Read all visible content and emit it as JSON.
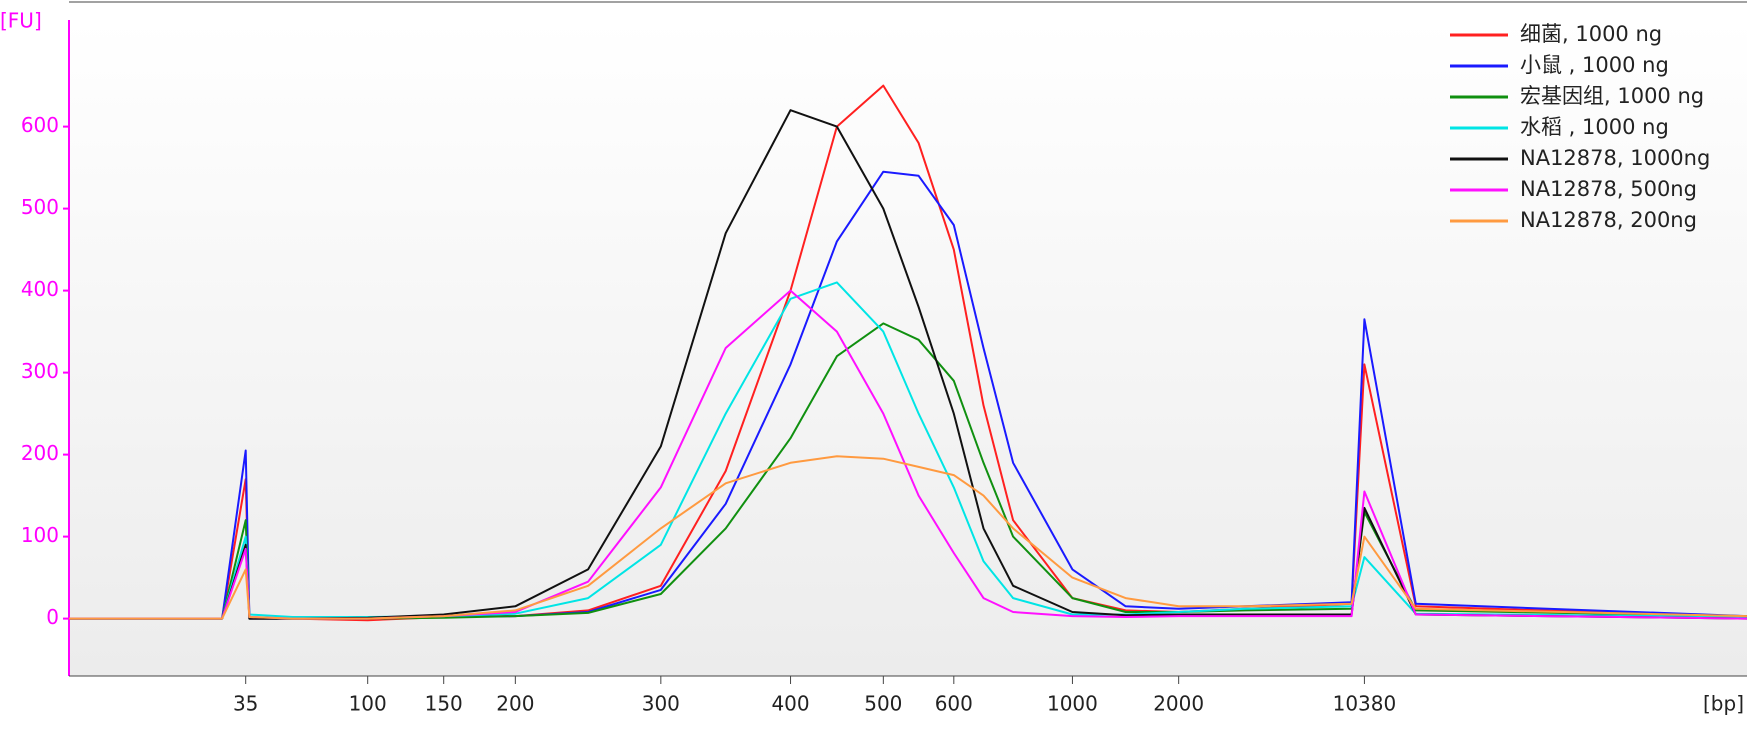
{
  "chart_data": {
    "type": "line",
    "y_label": "[FU]",
    "x_label": "[bp]",
    "x": [
      20,
      33,
      35,
      37,
      60,
      100,
      150,
      200,
      250,
      300,
      350,
      400,
      450,
      500,
      550,
      600,
      700,
      800,
      1000,
      1500,
      2000,
      5000,
      9800,
      10380,
      11000,
      15000
    ],
    "xlim": [
      20,
      15000
    ],
    "xticks": [
      35,
      100,
      150,
      200,
      300,
      400,
      500,
      600,
      1000,
      2000,
      10380
    ],
    "ylim": [
      -70,
      730
    ],
    "yticks": [
      0,
      100,
      200,
      300,
      400,
      500,
      600
    ],
    "legend": "top-right",
    "series": [
      {
        "name": "细菌, 1000 ng",
        "color": "#ff2020",
        "values": [
          0,
          0,
          170,
          0,
          0,
          -2,
          2,
          3,
          10,
          40,
          180,
          400,
          600,
          650,
          580,
          450,
          260,
          120,
          25,
          10,
          8,
          12,
          18,
          310,
          15,
          2
        ]
      },
      {
        "name": "小鼠 , 1000 ng",
        "color": "#1a1aff",
        "values": [
          0,
          0,
          205,
          0,
          0,
          0,
          2,
          3,
          8,
          35,
          140,
          310,
          460,
          545,
          540,
          480,
          330,
          190,
          60,
          15,
          12,
          15,
          20,
          365,
          18,
          3
        ]
      },
      {
        "name": "宏基因组, 1000 ng",
        "color": "#109010",
        "values": [
          0,
          0,
          120,
          0,
          0,
          0,
          1,
          3,
          7,
          30,
          110,
          220,
          320,
          360,
          340,
          290,
          190,
          100,
          25,
          8,
          8,
          10,
          12,
          130,
          10,
          3
        ]
      },
      {
        "name": "水稻 , 1000 ng",
        "color": "#00e5e5",
        "values": [
          0,
          0,
          100,
          5,
          2,
          2,
          3,
          6,
          25,
          90,
          250,
          390,
          410,
          350,
          250,
          160,
          70,
          25,
          5,
          5,
          8,
          12,
          15,
          75,
          6,
          2
        ]
      },
      {
        "name": "NA12878, 1000ng",
        "color": "#111111",
        "values": [
          0,
          0,
          90,
          0,
          0,
          1,
          5,
          15,
          60,
          210,
          470,
          620,
          600,
          500,
          380,
          250,
          110,
          40,
          8,
          4,
          5,
          5,
          5,
          135,
          5,
          0
        ]
      },
      {
        "name": "NA12878, 500ng",
        "color": "#ff10ff",
        "values": [
          0,
          0,
          85,
          2,
          0,
          0,
          3,
          8,
          45,
          160,
          330,
          400,
          350,
          250,
          150,
          80,
          25,
          8,
          3,
          2,
          3,
          3,
          3,
          155,
          5,
          0
        ]
      },
      {
        "name": "NA12878, 200ng",
        "color": "#ff9a40",
        "values": [
          0,
          0,
          60,
          2,
          0,
          0,
          3,
          10,
          40,
          110,
          165,
          190,
          198,
          195,
          185,
          175,
          150,
          110,
          50,
          25,
          15,
          15,
          18,
          100,
          12,
          3
        ]
      }
    ]
  }
}
